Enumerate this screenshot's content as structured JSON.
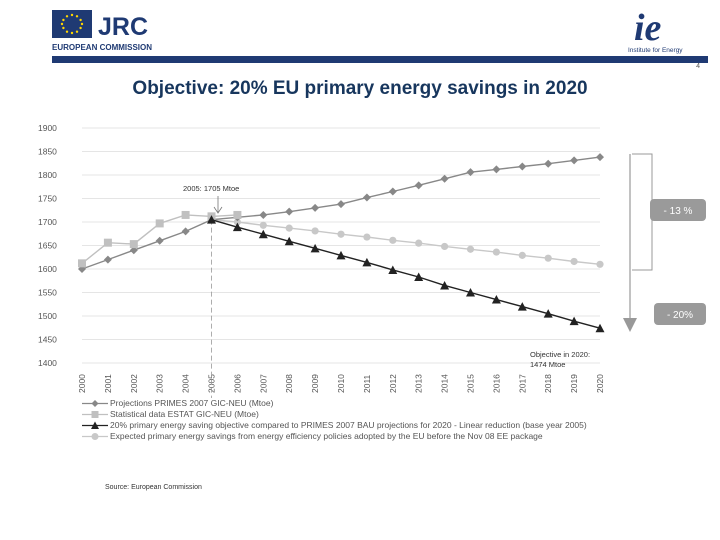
{
  "header": {
    "org_left": "JRC",
    "org_left_sub": "EUROPEAN COMMISSION",
    "org_right": "ie",
    "org_right_sub": "Institute for Energy",
    "page_number": "4"
  },
  "slide": {
    "title": "Objective: 20% EU primary energy savings in 2020",
    "source": "Source: European Commission"
  },
  "colors": {
    "header_bar": "#1f3a73",
    "title": "#17365d",
    "series_projections": "#888888",
    "series_statistical": "#c0c0c0",
    "series_objective": "#222222",
    "series_expected": "#c8c8c8",
    "badge": "#9a9a9a"
  },
  "chart_data": {
    "type": "line",
    "x": [
      2000,
      2001,
      2002,
      2003,
      2004,
      2005,
      2006,
      2007,
      2008,
      2009,
      2010,
      2011,
      2012,
      2013,
      2014,
      2015,
      2016,
      2017,
      2018,
      2019,
      2020
    ],
    "ylim": [
      1400,
      1900
    ],
    "yticks": [
      1400,
      1450,
      1500,
      1550,
      1600,
      1650,
      1700,
      1750,
      1800,
      1850,
      1900
    ],
    "grid": "horizontal",
    "legend_position": "bottom",
    "series": [
      {
        "name": "Projections PRIMES 2007 GIC-NEU (Mtoe)",
        "marker": "diamond",
        "x": [
          2000,
          2001,
          2002,
          2003,
          2004,
          2005,
          2006,
          2007,
          2008,
          2009,
          2010,
          2011,
          2012,
          2013,
          2014,
          2015,
          2016,
          2017,
          2018,
          2019,
          2020
        ],
        "values": [
          1600,
          1620,
          1640,
          1660,
          1680,
          1705,
          1710,
          1715,
          1722,
          1730,
          1738,
          1752,
          1765,
          1778,
          1792,
          1806,
          1812,
          1818,
          1824,
          1831,
          1838
        ]
      },
      {
        "name": "Statistical data ESTAT GIC-NEU (Mtoe)",
        "marker": "square",
        "x": [
          2000,
          2001,
          2002,
          2003,
          2004,
          2005,
          2006
        ],
        "values": [
          1612,
          1656,
          1653,
          1697,
          1715,
          1712,
          1715
        ]
      },
      {
        "name": "20% primary energy saving objective compared to PRIMES 2007 BAU projections for 2020 - Linear reduction (base year 2005)",
        "marker": "triangle",
        "x": [
          2005,
          2006,
          2007,
          2008,
          2009,
          2010,
          2011,
          2012,
          2013,
          2014,
          2015,
          2016,
          2017,
          2018,
          2019,
          2020
        ],
        "values": [
          1705,
          1689,
          1674,
          1659,
          1644,
          1629,
          1614,
          1598,
          1583,
          1565,
          1550,
          1535,
          1520,
          1505,
          1489,
          1474
        ]
      },
      {
        "name": "Expected primary energy savings from energy efficiency policies adopted by the EU before the Nov 08 EE package",
        "marker": "circle",
        "x": [
          2005,
          2006,
          2007,
          2008,
          2009,
          2010,
          2011,
          2012,
          2013,
          2014,
          2015,
          2016,
          2017,
          2018,
          2019,
          2020
        ],
        "values": [
          1705,
          1700,
          1693,
          1687,
          1681,
          1674,
          1668,
          1661,
          1655,
          1648,
          1642,
          1636,
          1629,
          1623,
          1616,
          1610
        ]
      }
    ],
    "annotations": [
      {
        "text": "2005: 1705 Mtoe"
      },
      {
        "text": "Objective in 2020:"
      },
      {
        "text": "1474 Mtoe"
      },
      {
        "text": "- 13 %"
      },
      {
        "text": "- 20%"
      }
    ]
  }
}
